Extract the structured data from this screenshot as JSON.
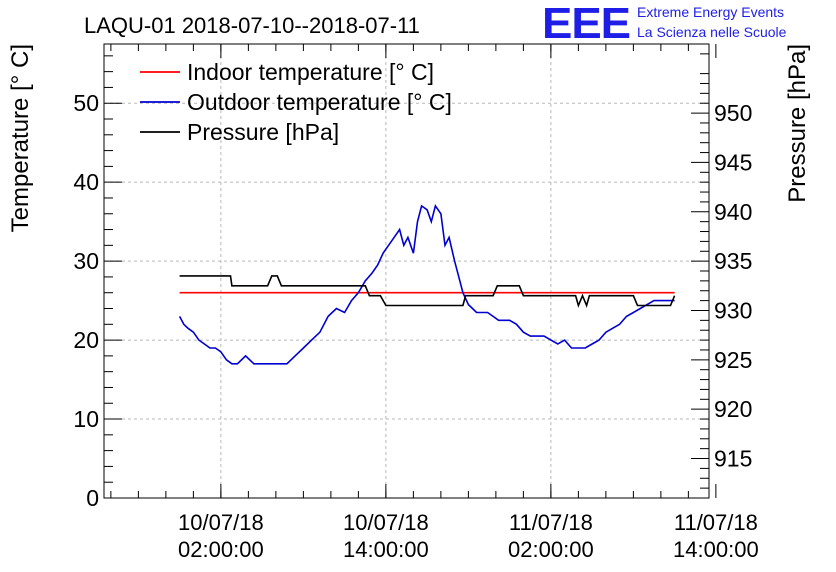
{
  "title": "LAQU-01 2018-07-10--2018-07-11",
  "logo": {
    "mark": "EEE",
    "line1": "Extreme Energy Events",
    "line2": "La Scienza nelle Scuole",
    "color": "#1e1ee6"
  },
  "chart_data": {
    "type": "line",
    "title": "LAQU-01 2018-07-10--2018-07-11",
    "xlabel": "",
    "ylabel": "Temperature [° C]",
    "y2label": "Pressure [hPa]",
    "x_unit": "hours since 10/07/18 00:00:00",
    "xlim": [
      -6.5,
      37.5
    ],
    "ylim": [
      0,
      57.5
    ],
    "y2lim": [
      911,
      957
    ],
    "grid": true,
    "legend_position": "top-left",
    "x_ticks": [
      {
        "x": 2,
        "date": "10/07/18",
        "time": "02:00:00"
      },
      {
        "x": 14,
        "date": "10/07/18",
        "time": "14:00:00"
      },
      {
        "x": 26,
        "date": "11/07/18",
        "time": "02:00:00"
      },
      {
        "x": 38,
        "date": "11/07/18",
        "time": "14:00:00"
      }
    ],
    "y_ticks": [
      0,
      10,
      20,
      30,
      40,
      50
    ],
    "y2_ticks": [
      915,
      920,
      925,
      930,
      935,
      940,
      945,
      950
    ],
    "series": [
      {
        "name": "Indoor temperature [° C]",
        "axis": "left",
        "color": "#ff0000",
        "x": [
          -1,
          35
        ],
        "y": [
          26,
          26
        ]
      },
      {
        "name": "Outdoor temperature [° C]",
        "axis": "left",
        "color": "#0000d0",
        "x": [
          -1,
          -0.7,
          -0.4,
          0,
          0.4,
          0.8,
          1.2,
          1.6,
          2,
          2.4,
          2.8,
          3.2,
          3.8,
          4.4,
          5,
          5.6,
          6.2,
          6.8,
          7.4,
          8,
          8.6,
          9.2,
          9.8,
          10.4,
          11,
          11.5,
          12,
          12.5,
          13,
          13.4,
          13.8,
          14.2,
          14.6,
          15,
          15.3,
          15.6,
          16,
          16.3,
          16.6,
          17,
          17.3,
          17.6,
          18,
          18.3,
          18.6,
          19,
          19.3,
          19.6,
          20,
          20.3,
          20.6,
          21,
          21.4,
          21.8,
          22.2,
          22.6,
          23,
          23.5,
          24,
          24.5,
          25,
          25.5,
          26,
          26.5,
          27,
          27.5,
          28,
          28.5,
          29,
          29.5,
          30,
          30.5,
          31,
          31.5,
          32,
          32.5,
          33,
          33.5,
          34,
          34.5,
          35
        ],
        "y": [
          23,
          22,
          21.5,
          21,
          20,
          19.5,
          19,
          19,
          18.5,
          17.5,
          17,
          17,
          18,
          17,
          17,
          17,
          17,
          17,
          18,
          19,
          20,
          21,
          23,
          24,
          23.5,
          25,
          26,
          27.5,
          28.5,
          29.5,
          31,
          32,
          33,
          34,
          32,
          33,
          31,
          35,
          37,
          36.5,
          35,
          37,
          36,
          32,
          33,
          30,
          28,
          26,
          24.5,
          24,
          23.5,
          23.5,
          23.5,
          23,
          22.5,
          22.5,
          22.5,
          22,
          21,
          20.5,
          20.5,
          20.5,
          20,
          19.5,
          20,
          19,
          19,
          19,
          19.5,
          20,
          21,
          21.5,
          22,
          23,
          23.5,
          24,
          24.5,
          25,
          25,
          25,
          25
        ]
      },
      {
        "name": "Pressure [hPa]",
        "axis": "right",
        "color": "#000000",
        "x": [
          -1,
          2.7,
          2.8,
          5.4,
          5.7,
          6.1,
          6.4,
          9.7,
          10,
          12.5,
          12.8,
          13.6,
          14,
          19.6,
          19.8,
          21.8,
          22.1,
          23.7,
          24,
          26.5,
          27.8,
          28,
          28.3,
          28.6,
          28.8,
          32,
          32.3,
          34.7,
          35
        ],
        "y": [
          933.5,
          933.5,
          932.5,
          932.5,
          933.5,
          933.5,
          932.5,
          932.5,
          932.5,
          932.5,
          931.5,
          931.5,
          930.5,
          930.5,
          931.5,
          931.5,
          932.5,
          932.5,
          931.5,
          931.5,
          931.5,
          930.5,
          931.5,
          930.5,
          931.5,
          931.5,
          930.5,
          930.5,
          931.5
        ]
      }
    ]
  }
}
